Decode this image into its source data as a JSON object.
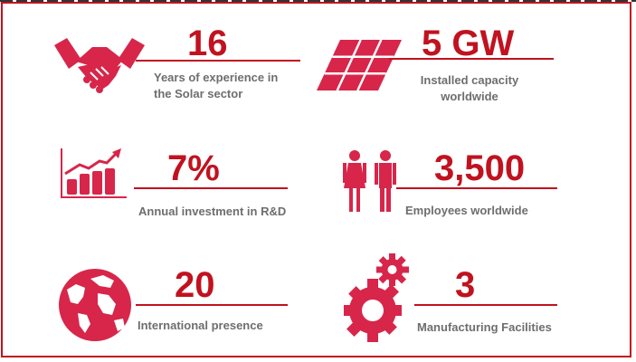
{
  "colors": {
    "accent": "#c1121f",
    "icon": "#d7264a",
    "text": "#6e6e6e",
    "border": "#c1121f"
  },
  "stats": [
    {
      "icon": "handshake-icon",
      "value": "16",
      "label_line1": "Years of experience in",
      "label_line2": "the Solar sector"
    },
    {
      "icon": "solar-panel-icon",
      "value": "5 GW",
      "label_line1": "Installed capacity",
      "label_line2": "worldwide"
    },
    {
      "icon": "growth-chart-icon",
      "value": "7%",
      "label_line1": "Annual investment in R&D"
    },
    {
      "icon": "people-icon",
      "value": "3,500",
      "label_line1": "Employees worldwide"
    },
    {
      "icon": "globe-icon",
      "value": "20",
      "label_line1": "International presence"
    },
    {
      "icon": "gears-icon",
      "value": "3",
      "label_line1": "Manufacturing Facilities"
    }
  ]
}
